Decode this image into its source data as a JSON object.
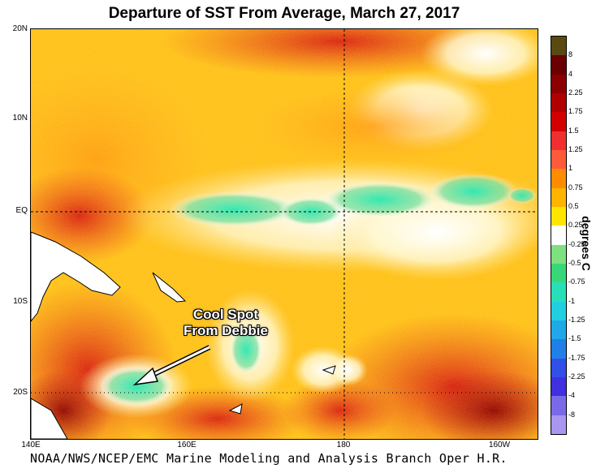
{
  "title": "Departure of SST From Average, March 27, 2017",
  "footer": "NOAA/NWS/NCEP/EMC Marine Modeling and Analysis Branch Oper H.R.",
  "annotation": {
    "line1": "Cool Spot",
    "line2": "From Debbie"
  },
  "lat_labels": [
    "20N",
    "10N",
    "EQ",
    "10S",
    "20S"
  ],
  "lon_labels": [
    "140E",
    "160E",
    "180",
    "160W"
  ],
  "colorbar": {
    "unit": "degrees C",
    "labels": [
      "8",
      "4",
      "2.25",
      "1.75",
      "1.5",
      "1.25",
      "1",
      "0.75",
      "0.5",
      "0.25",
      "-0.25",
      "-0.5",
      "-0.75",
      "-1",
      "-1.25",
      "-1.5",
      "-1.75",
      "-2.25",
      "-4",
      "-8"
    ],
    "colors": [
      "#5a4a10",
      "#6b0000",
      "#8b0000",
      "#b00000",
      "#d40000",
      "#f03030",
      "#ff5a3a",
      "#ff8c00",
      "#ffb400",
      "#ffe600",
      "#ffffff",
      "#7ee07e",
      "#38d878",
      "#28e0b8",
      "#20d0e0",
      "#20a8e8",
      "#2080e8",
      "#3050e8",
      "#4030e0",
      "#7a6ae8",
      "#a896f0"
    ]
  }
}
